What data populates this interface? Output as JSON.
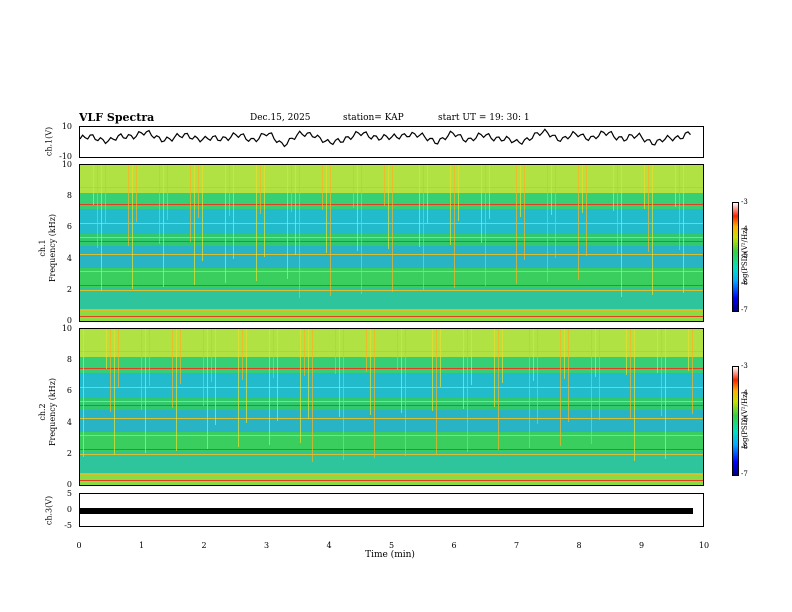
{
  "header": {
    "title": "VLF Spectra",
    "date": "Dec.15, 2025",
    "station": "station= KAP",
    "start": "start UT =  19: 30: 1"
  },
  "chart_data": [
    {
      "type": "line",
      "name": "ch.1 waveform",
      "ylabel": "ch.1(V)",
      "ylim": [
        -10,
        10
      ],
      "yticks": [
        "10",
        "-10"
      ],
      "x": [
        0,
        0.25,
        0.5,
        0.75,
        1.0,
        1.25,
        1.5,
        1.75,
        2.0,
        2.25,
        2.5,
        2.75,
        3.0,
        3.25,
        3.5,
        3.75,
        4.0,
        4.25,
        4.5,
        4.75,
        5.0,
        5.25,
        5.5,
        5.75,
        6.0,
        6.25,
        6.5,
        6.75,
        7.0,
        7.25,
        7.5,
        7.75,
        8.0,
        8.25,
        8.5,
        8.75,
        9.0,
        9.25,
        9.5,
        9.75
      ],
      "values": [
        2,
        3,
        1,
        4,
        6,
        3,
        2,
        5,
        1,
        3,
        4,
        2,
        5,
        -1,
        4,
        6,
        -2,
        3,
        5,
        4,
        2,
        6,
        3,
        1,
        5,
        2,
        4,
        3,
        -1,
        4,
        6,
        2,
        5,
        3,
        6,
        2,
        4,
        -1,
        3,
        5
      ]
    },
    {
      "type": "heatmap",
      "name": "ch.1 spectrogram",
      "ylabel": "ch.1\nFrequency (kHz)",
      "ylim": [
        0,
        10
      ],
      "yticks": [
        "0",
        "2",
        "4",
        "6",
        "8",
        "10"
      ],
      "colorbar": {
        "label": "log(PSD)(V²/Hz)",
        "range": [
          -7,
          -3
        ],
        "ticks": [
          "-3",
          "-4",
          "-5",
          "-6",
          "-7"
        ]
      }
    },
    {
      "type": "heatmap",
      "name": "ch.2 spectrogram",
      "ylabel": "ch.2\nFrequency (kHz)",
      "ylim": [
        0,
        10
      ],
      "yticks": [
        "0",
        "2",
        "4",
        "6",
        "8",
        "10"
      ],
      "colorbar": {
        "label": "log(PSD)(V²/Hz)",
        "range": [
          -7,
          -3
        ],
        "ticks": [
          "-3",
          "-4",
          "-5",
          "-6",
          "-7"
        ]
      }
    },
    {
      "type": "line",
      "name": "ch.3 waveform",
      "ylabel": "ch.3(V)",
      "ylim": [
        -5,
        5
      ],
      "yticks": [
        "5",
        "0",
        "-5"
      ],
      "x": [
        0,
        9.8
      ],
      "values": [
        -1.5,
        -1.5
      ]
    }
  ],
  "xaxis": {
    "label": "Time (min)",
    "ticks": [
      "0",
      "1",
      "2",
      "3",
      "4",
      "5",
      "6",
      "7",
      "8",
      "9",
      "10"
    ],
    "range": [
      0,
      10
    ]
  }
}
